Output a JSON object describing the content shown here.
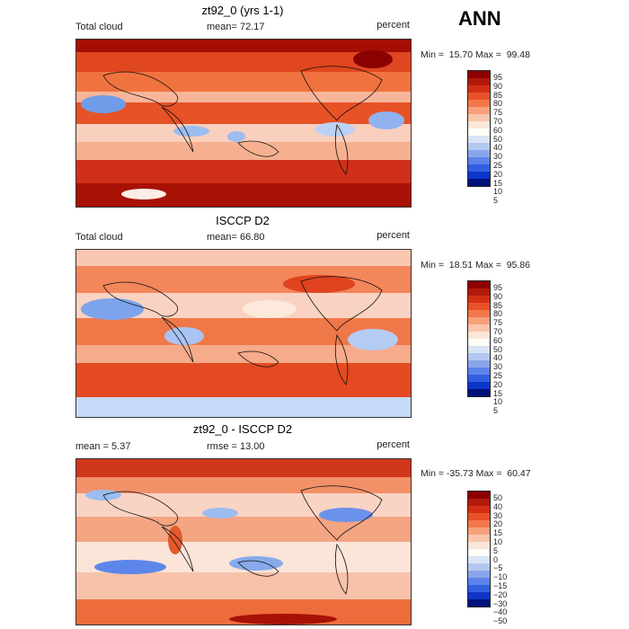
{
  "season": "ANN",
  "panels": [
    {
      "title": "zt92_0 (yrs 1-1)",
      "left_label": "Total cloud",
      "center_label": "mean=  72.17",
      "right_label": "percent",
      "minmax": "Min =  15.70 Max =  99.48",
      "ticks": [
        "95",
        "90",
        "85",
        "80",
        "75",
        "70",
        "60",
        "50",
        "40",
        "30",
        "25",
        "20",
        "15",
        "10",
        "5"
      ],
      "colors": [
        "#8b0000",
        "#b11a0b",
        "#d42f15",
        "#e8522a",
        "#f2774a",
        "#f7a07b",
        "#f9c5ac",
        "#fbe6da",
        "#fffdf7",
        "#d8e3f5",
        "#b3c8ef",
        "#8aa6eb",
        "#5d83ea",
        "#3060e0",
        "#0d35c7",
        "#00127a"
      ]
    },
    {
      "title": "ISCCP D2",
      "left_label": "Total cloud",
      "center_label": "mean=  66.80",
      "right_label": "percent",
      "minmax": "Min =  18.51 Max =  95.86",
      "ticks": [
        "95",
        "90",
        "85",
        "80",
        "75",
        "70",
        "60",
        "50",
        "40",
        "30",
        "25",
        "20",
        "15",
        "10",
        "5"
      ],
      "colors": [
        "#8b0000",
        "#b11a0b",
        "#d42f15",
        "#e8522a",
        "#f2774a",
        "#f7a07b",
        "#f9c5ac",
        "#fbe6da",
        "#fffdf7",
        "#d8e3f5",
        "#b3c8ef",
        "#8aa6eb",
        "#5d83ea",
        "#3060e0",
        "#0d35c7",
        "#00127a"
      ]
    },
    {
      "title": "zt92_0 - ISCCP D2",
      "left_label": "mean =   5.37",
      "center_label": "rmse =  13.00",
      "right_label": "percent",
      "minmax": "Min = -35.73 Max =  60.47",
      "ticks": [
        "50",
        "40",
        "30",
        "20",
        "15",
        "10",
        "5",
        "0",
        "−5",
        "−10",
        "−15",
        "−20",
        "−30",
        "−40",
        "−50"
      ],
      "colors": [
        "#8b0000",
        "#b11a0b",
        "#d42f15",
        "#e8522a",
        "#f2774a",
        "#f7a07b",
        "#f9c5ac",
        "#fbe6da",
        "#fffdf7",
        "#d8e3f5",
        "#b3c8ef",
        "#8aa6eb",
        "#5d83ea",
        "#3060e0",
        "#0d35c7",
        "#00127a"
      ]
    }
  ]
}
